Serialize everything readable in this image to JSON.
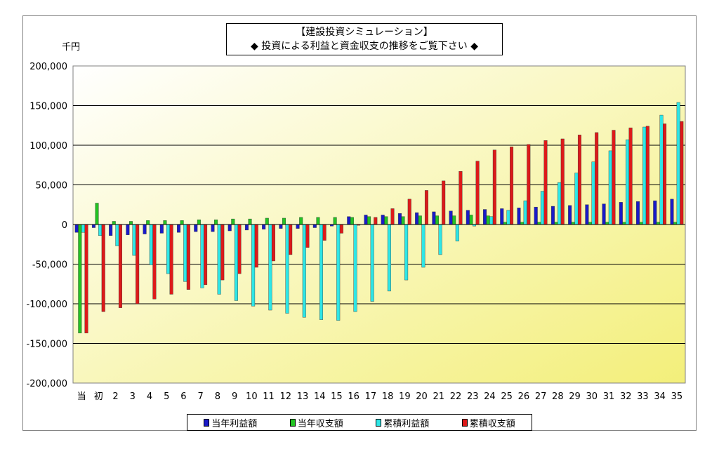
{
  "chart_data": {
    "type": "bar",
    "title": "【建設投資シミュレーション】",
    "subtitle": "◆ 投資による利益と資金収支の推移をご覧下さい ◆",
    "ylabel": "千円",
    "ylim": [
      -200000,
      200000
    ],
    "yticks": [
      "200,000",
      "150,000",
      "100,000",
      "50,000",
      "0",
      "-50,000",
      "-100,000",
      "-150,000",
      "-200,000"
    ],
    "ytick_values": [
      200000,
      150000,
      100000,
      50000,
      0,
      -50000,
      -100000,
      -150000,
      -200000
    ],
    "categories": [
      "当",
      "初",
      "2",
      "3",
      "4",
      "5",
      "6",
      "7",
      "8",
      "9",
      "10",
      "11",
      "12",
      "13",
      "14",
      "15",
      "16",
      "17",
      "18",
      "19",
      "20",
      "21",
      "22",
      "23",
      "24",
      "25",
      "26",
      "27",
      "28",
      "29",
      "30",
      "31",
      "32",
      "33",
      "34",
      "35"
    ],
    "series": [
      {
        "name": "当年利益額",
        "color": "#1a1ac8",
        "values": [
          -10000,
          -4000,
          -14000,
          -13000,
          -12000,
          -11000,
          -10000,
          -9000,
          -9000,
          -8000,
          -7000,
          -6000,
          -5000,
          -5000,
          -4000,
          -2000,
          10000,
          12000,
          12000,
          14000,
          15000,
          16000,
          17000,
          18000,
          19000,
          20000,
          21000,
          22000,
          23000,
          24000,
          25000,
          26000,
          28000,
          29000,
          30000,
          32000
        ]
      },
      {
        "name": "当年収支額",
        "color": "#22c322",
        "values": [
          -137000,
          27000,
          4000,
          4000,
          5000,
          5000,
          5000,
          6000,
          6000,
          7000,
          7000,
          8000,
          8000,
          9000,
          9000,
          9000,
          9000,
          10000,
          10000,
          10000,
          11000,
          11000,
          11000,
          12000,
          11000,
          3000,
          3000,
          3000,
          3000,
          3000,
          3000,
          3000,
          3000,
          3000,
          3000,
          3000
        ]
      },
      {
        "name": "累積利益額",
        "color": "#2ee6e6",
        "values": [
          -10000,
          -14000,
          -27000,
          -39000,
          -51000,
          -62000,
          -72000,
          -80000,
          -88000,
          -96000,
          -103000,
          -108000,
          -112000,
          -117000,
          -120000,
          -121000,
          -110000,
          -97000,
          -84000,
          -70000,
          -54000,
          -38000,
          -21000,
          -2000,
          10000,
          18000,
          30000,
          42000,
          53000,
          65000,
          79000,
          93000,
          107000,
          123000,
          138000,
          154000
        ]
      },
      {
        "name": "累積収支額",
        "color": "#dd1a1a",
        "values": [
          -137000,
          -110000,
          -105000,
          -100000,
          -94000,
          -88000,
          -82000,
          -76000,
          -70000,
          -62000,
          -54000,
          -46000,
          -38000,
          -29000,
          -20000,
          -11000,
          -1000,
          9000,
          20000,
          32000,
          43000,
          55000,
          67000,
          80000,
          94000,
          98000,
          101000,
          106000,
          108000,
          113000,
          116000,
          119000,
          122000,
          124000,
          127000,
          130000
        ]
      }
    ],
    "grid": true,
    "legend_position": "bottom"
  }
}
